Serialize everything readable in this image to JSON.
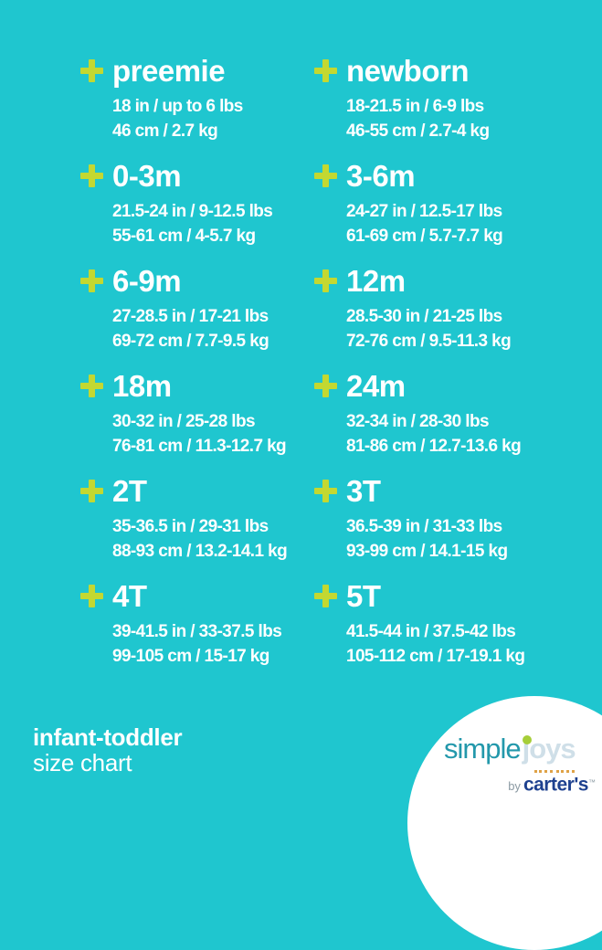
{
  "colors": {
    "background": "#1fc6cf",
    "plus_icon": "#c3d831",
    "text": "#ffffff",
    "logo_simple": "#2398ab",
    "logo_joys": "#cfdfe8",
    "logo_lime_dot": "#a6ce39",
    "logo_dots": "#dfa246",
    "logo_by": "#8b9aa3",
    "logo_carters": "#1e418f",
    "logo_circle": "#ffffff"
  },
  "sizes": [
    {
      "name": "preemie",
      "imperial": "18 in / up to 6 lbs",
      "metric": "46 cm / 2.7 kg"
    },
    {
      "name": "newborn",
      "imperial": "18-21.5 in / 6-9 lbs",
      "metric": "46-55 cm / 2.7-4 kg"
    },
    {
      "name": "0-3m",
      "imperial": "21.5-24 in / 9-12.5 lbs",
      "metric": "55-61 cm / 4-5.7 kg"
    },
    {
      "name": "3-6m",
      "imperial": "24-27 in / 12.5-17 lbs",
      "metric": "61-69 cm / 5.7-7.7 kg"
    },
    {
      "name": "6-9m",
      "imperial": "27-28.5 in / 17-21 lbs",
      "metric": "69-72 cm / 7.7-9.5 kg"
    },
    {
      "name": "12m",
      "imperial": "28.5-30 in / 21-25 lbs",
      "metric": "72-76 cm / 9.5-11.3 kg"
    },
    {
      "name": "18m",
      "imperial": "30-32 in / 25-28 lbs",
      "metric": "76-81 cm / 11.3-12.7 kg"
    },
    {
      "name": "24m",
      "imperial": "32-34 in / 28-30 lbs",
      "metric": "81-86 cm / 12.7-13.6 kg"
    },
    {
      "name": "2T",
      "imperial": "35-36.5 in / 29-31 lbs",
      "metric": "88-93 cm / 13.2-14.1 kg"
    },
    {
      "name": "3T",
      "imperial": "36.5-39 in / 31-33 lbs",
      "metric": "93-99 cm / 14.1-15 kg"
    },
    {
      "name": "4T",
      "imperial": "39-41.5 in / 33-37.5 lbs",
      "metric": "99-105 cm / 15-17 kg"
    },
    {
      "name": "5T",
      "imperial": "41.5-44 in / 37.5-42 lbs",
      "metric": "105-112 cm / 17-19.1 kg"
    }
  ],
  "footer": {
    "line1": "infant-toddler",
    "line2": "size chart"
  },
  "logo": {
    "simple": "simple",
    "joys": "joys",
    "by": "by",
    "carters": "carter's",
    "tm": "™"
  },
  "chart_data": {
    "type": "table",
    "title": "infant-toddler size chart",
    "columns": [
      "size",
      "length_in",
      "weight_lbs",
      "length_cm",
      "weight_kg"
    ],
    "rows": [
      [
        "preemie",
        "18",
        "up to 6",
        "46",
        "2.7"
      ],
      [
        "newborn",
        "18-21.5",
        "6-9",
        "46-55",
        "2.7-4"
      ],
      [
        "0-3m",
        "21.5-24",
        "9-12.5",
        "55-61",
        "4-5.7"
      ],
      [
        "3-6m",
        "24-27",
        "12.5-17",
        "61-69",
        "5.7-7.7"
      ],
      [
        "6-9m",
        "27-28.5",
        "17-21",
        "69-72",
        "7.7-9.5"
      ],
      [
        "12m",
        "28.5-30",
        "21-25",
        "72-76",
        "9.5-11.3"
      ],
      [
        "18m",
        "30-32",
        "25-28",
        "76-81",
        "11.3-12.7"
      ],
      [
        "24m",
        "32-34",
        "28-30",
        "81-86",
        "12.7-13.6"
      ],
      [
        "2T",
        "35-36.5",
        "29-31",
        "88-93",
        "13.2-14.1"
      ],
      [
        "3T",
        "36.5-39",
        "31-33",
        "93-99",
        "14.1-15"
      ],
      [
        "4T",
        "39-41.5",
        "33-37.5",
        "99-105",
        "15-17"
      ],
      [
        "5T",
        "41.5-44",
        "37.5-42",
        "105-112",
        "17-19.1"
      ]
    ]
  }
}
